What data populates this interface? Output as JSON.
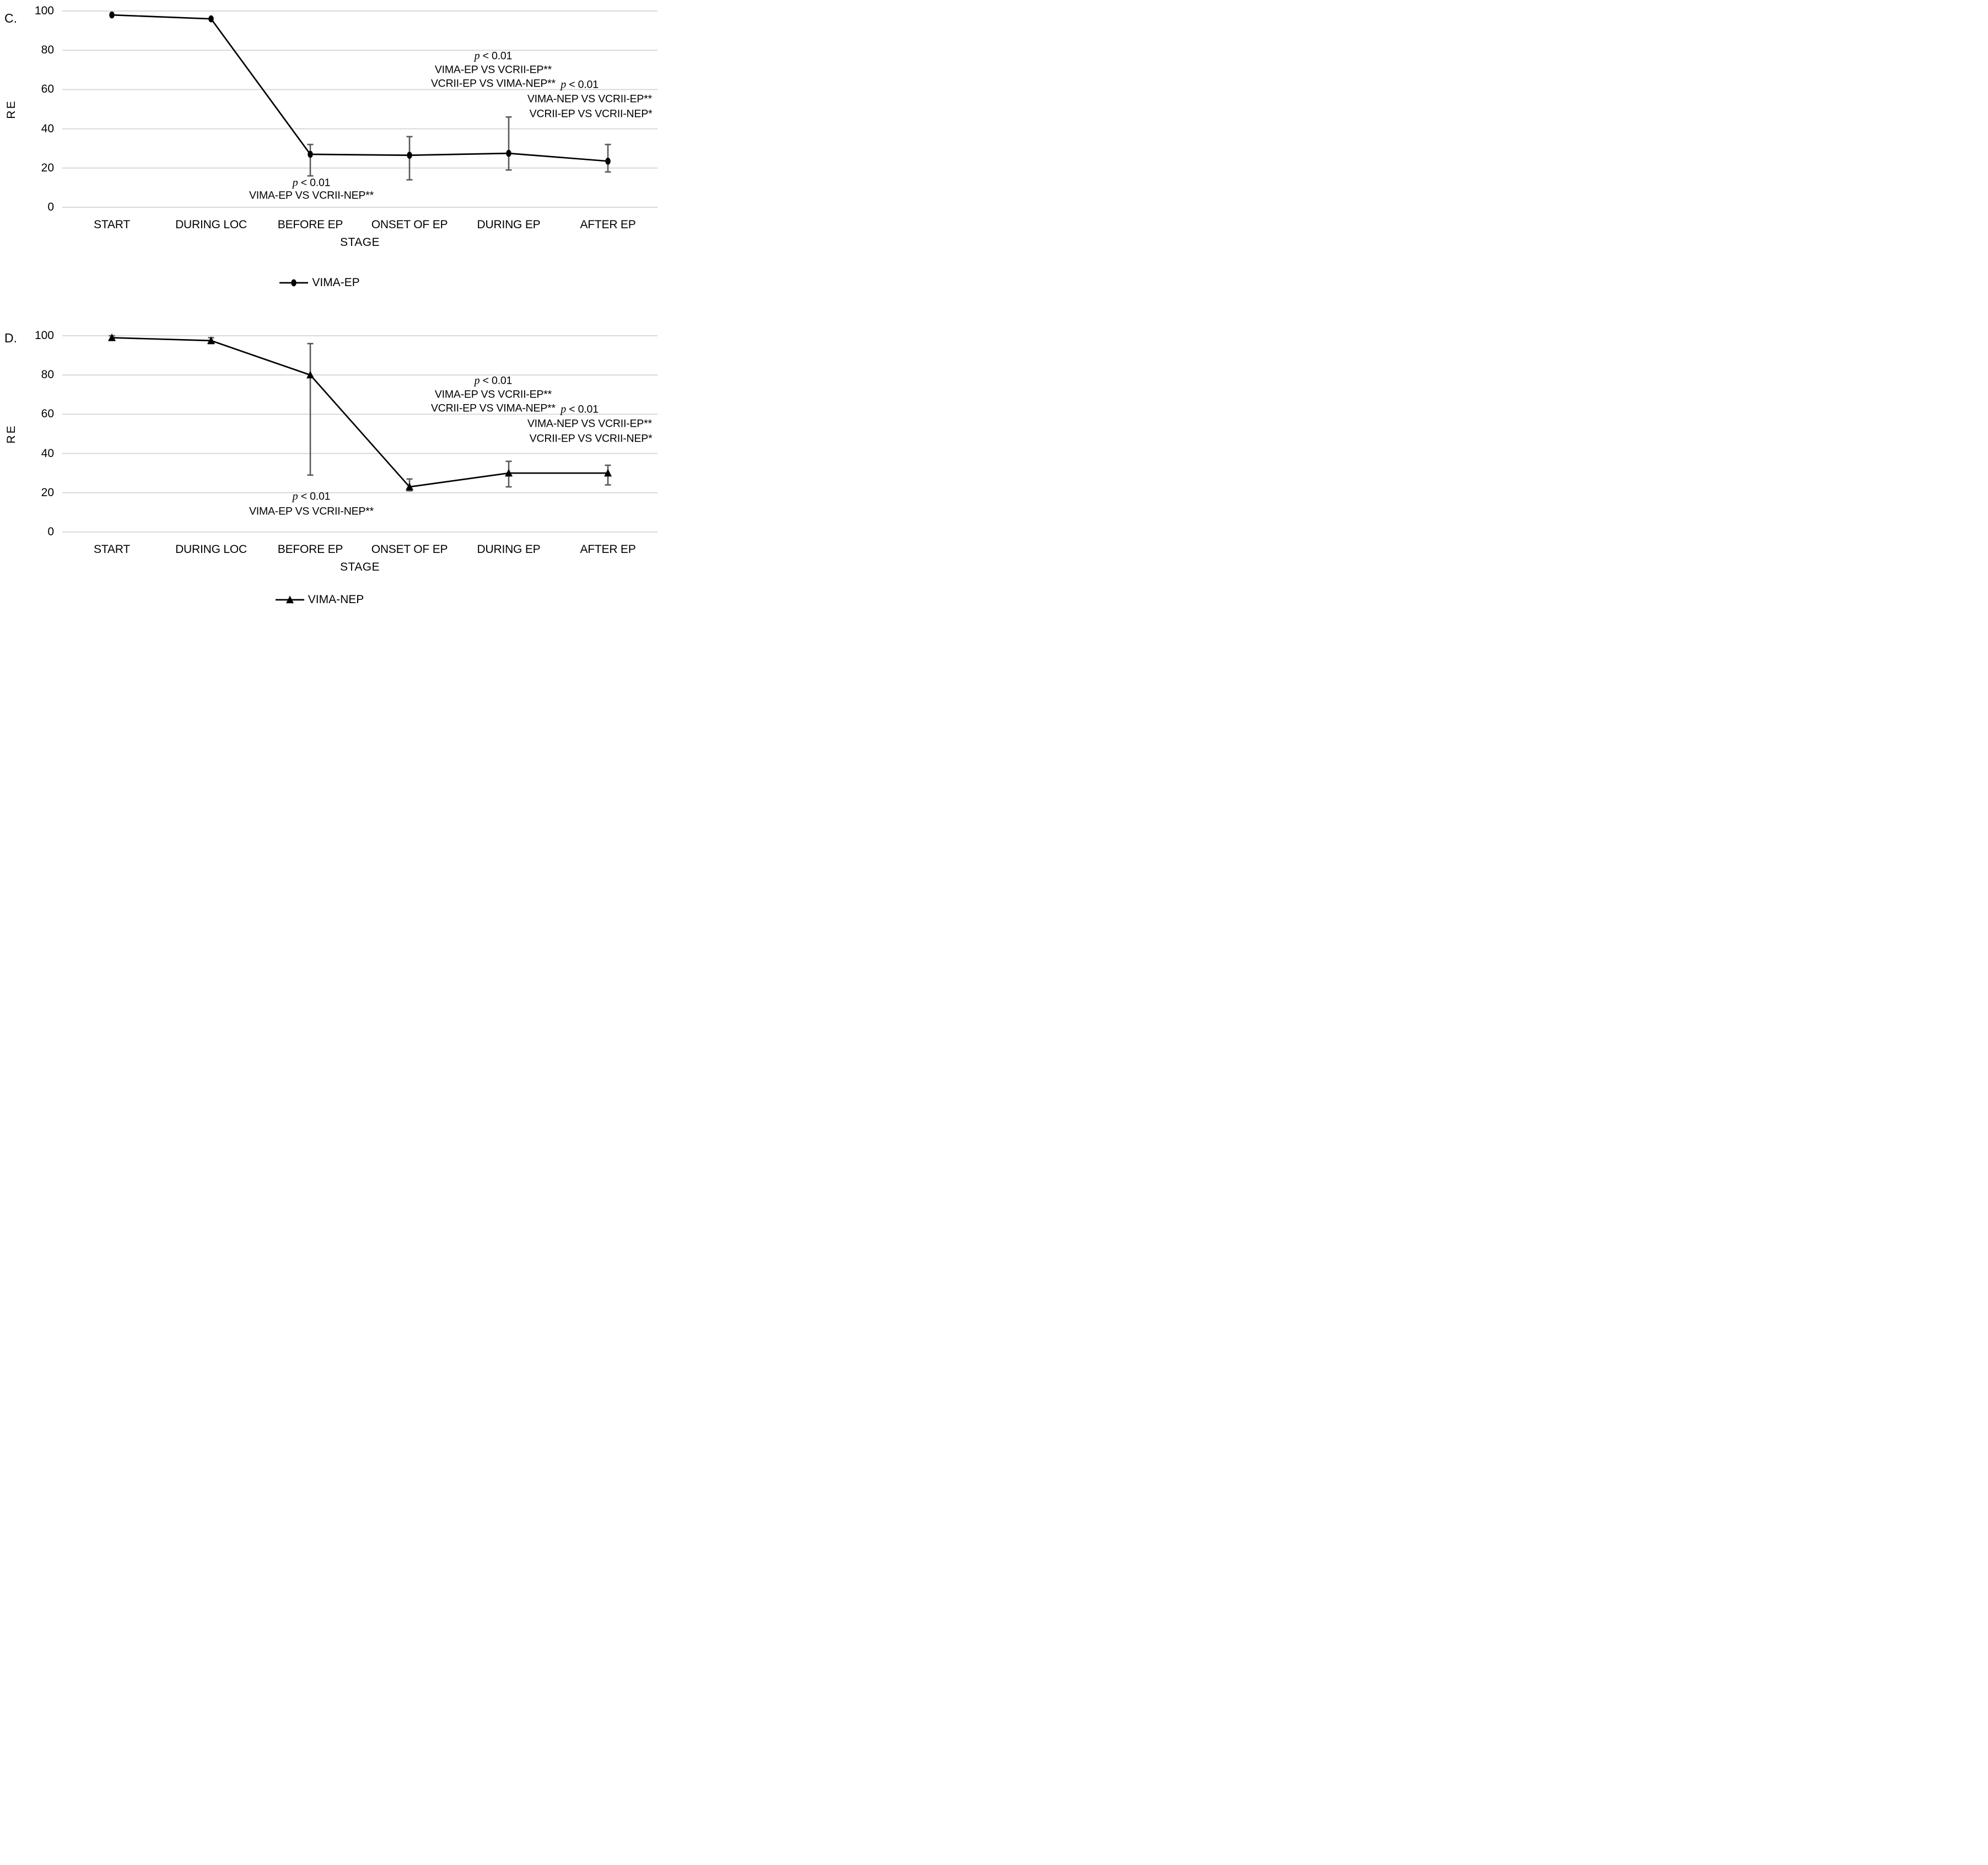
{
  "colors": {
    "background": "#ffffff",
    "series": "#000000",
    "error_bar": "#595959",
    "gridline": "#d9d9d9",
    "text": "#000000"
  },
  "chart_data": [
    {
      "type": "line",
      "panel_label": "C.",
      "xlabel": "STAGE",
      "ylabel": "RE",
      "ylim": [
        0,
        100
      ],
      "yticks": [
        0,
        20,
        40,
        60,
        80,
        100
      ],
      "grid": true,
      "categories": [
        "START",
        "DURING LOC",
        "BEFORE EP",
        "ONSET OF EP",
        "DURING EP",
        "AFTER EP"
      ],
      "series": [
        {
          "name": "VIMA-EP",
          "marker": "circle",
          "values": [
            98,
            96,
            27,
            26.5,
            27.5,
            23.5
          ],
          "error_low": [
            null,
            null,
            16,
            14,
            19,
            18
          ],
          "error_high": [
            null,
            null,
            32,
            36,
            46,
            32
          ]
        }
      ],
      "legend": {
        "label": "VIMA-EP",
        "marker": "circle",
        "position": "bottom"
      },
      "annotations": [
        {
          "lines": [
            {
              "x": 0.724,
              "v": 77,
              "italic_prefix": "p",
              "text": " < 0.01"
            },
            {
              "x": 0.724,
              "v": 70,
              "text": "VIMA-EP VS VCRII-EP**"
            },
            {
              "x": 0.724,
              "v": 63,
              "text": "VCRII-EP VS VIMA-NEP**"
            }
          ]
        },
        {
          "lines": [
            {
              "x": 0.869,
              "v": 62.5,
              "italic_prefix": "p",
              "text": " < 0.01"
            },
            {
              "x": 0.886,
              "v": 55,
              "text": "VIMA-NEP VS VCRII-EP**"
            },
            {
              "x": 0.888,
              "v": 47.5,
              "text": "VCRII-EP VS VCRII-NEP*"
            }
          ]
        },
        {
          "lines": [
            {
              "x": 0.4185,
              "v": 12.5,
              "italic_prefix": "p",
              "text": " < 0.01"
            },
            {
              "x": 0.4185,
              "v": 6,
              "text": "VIMA-EP VS VCRII-NEP**"
            }
          ]
        }
      ]
    },
    {
      "type": "line",
      "panel_label": "D.",
      "xlabel": "STAGE",
      "ylabel": "RE",
      "ylim": [
        0,
        100
      ],
      "yticks": [
        0,
        20,
        40,
        60,
        80,
        100
      ],
      "grid": true,
      "categories": [
        "START",
        "DURING LOC",
        "BEFORE EP",
        "ONSET OF EP",
        "DURING EP",
        "AFTER EP"
      ],
      "series": [
        {
          "name": "VIMA-NEP",
          "marker": "triangle",
          "values": [
            99,
            97.5,
            80,
            23,
            30,
            30
          ],
          "error_low": [
            98,
            96,
            29,
            21,
            23,
            24
          ],
          "error_high": [
            100,
            99,
            96,
            27,
            36,
            34
          ]
        }
      ],
      "legend": {
        "label": "VIMA-NEP",
        "marker": "triangle",
        "position": "bottom"
      },
      "annotations": [
        {
          "lines": [
            {
              "x": 0.724,
              "v": 77,
              "italic_prefix": "p",
              "text": " < 0.01"
            },
            {
              "x": 0.724,
              "v": 70,
              "text": "VIMA-EP VS VCRII-EP**"
            },
            {
              "x": 0.724,
              "v": 63,
              "text": "VCRII-EP VS VIMA-NEP**"
            }
          ]
        },
        {
          "lines": [
            {
              "x": 0.869,
              "v": 62.5,
              "italic_prefix": "p",
              "text": " < 0.01"
            },
            {
              "x": 0.886,
              "v": 55,
              "text": "VIMA-NEP VS VCRII-EP**"
            },
            {
              "x": 0.888,
              "v": 47.5,
              "text": "VCRII-EP VS VCRII-NEP*"
            }
          ]
        },
        {
          "lines": [
            {
              "x": 0.4185,
              "v": 18,
              "italic_prefix": "p",
              "text": " < 0.01"
            },
            {
              "x": 0.4185,
              "v": 10.5,
              "text": "VIMA-EP VS VCRII-NEP**"
            }
          ]
        }
      ]
    }
  ]
}
